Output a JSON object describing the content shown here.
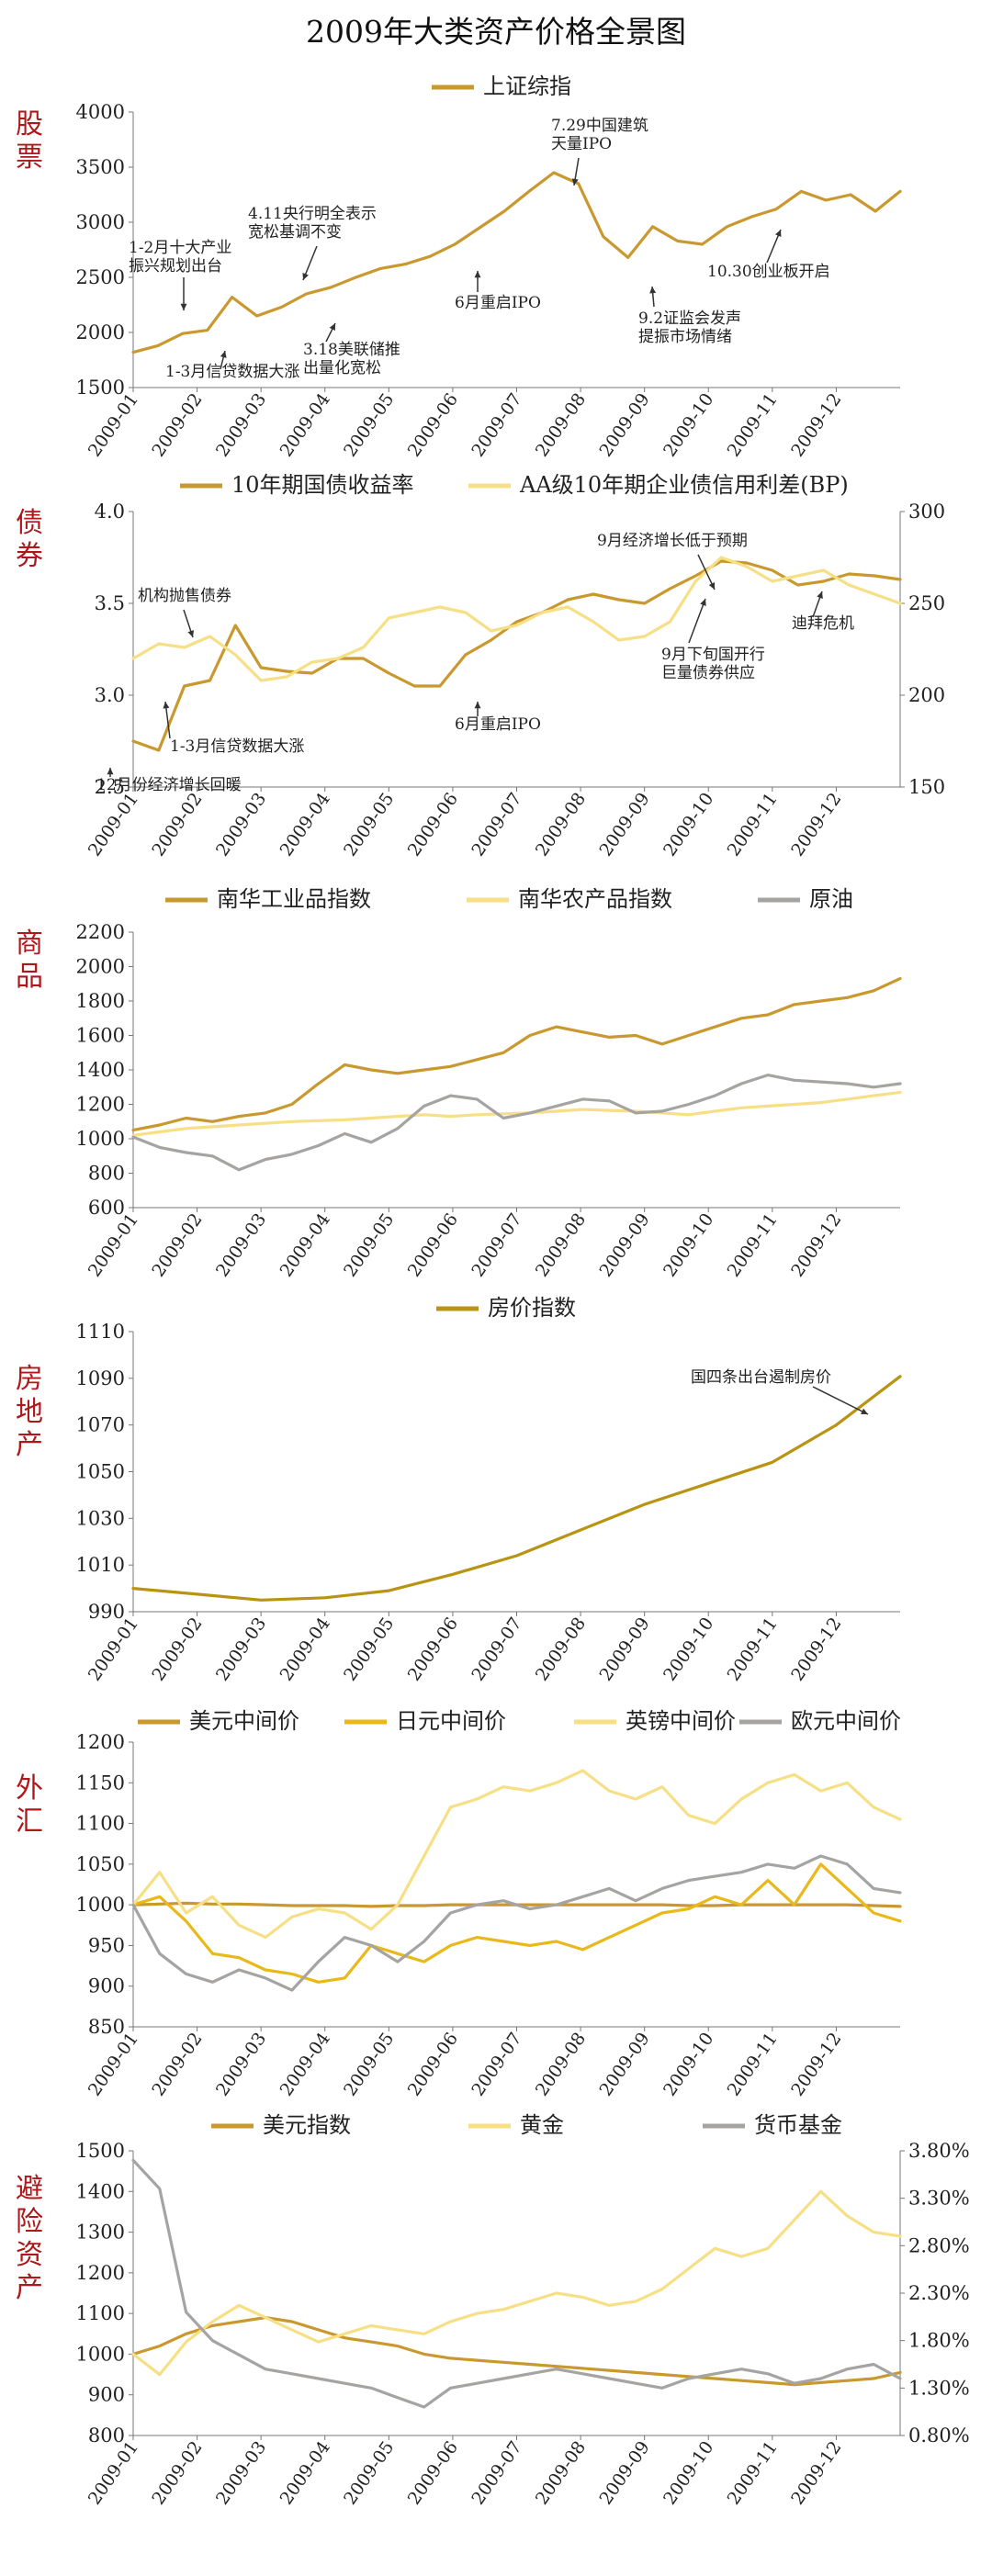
{
  "title": "2009年大类资产价格全景图",
  "colors": {
    "gold_dark": "#c9982e",
    "gold": "#e9b91c",
    "yellow_light": "#f7df86",
    "gray": "#a6a4a2",
    "olive": "#b99312",
    "label_red": "#b0171b"
  },
  "chart_data": [
    {
      "id": "stocks",
      "section": "股票",
      "type": "line",
      "title": "",
      "x_ticks": [
        "2009-01",
        "2009-02",
        "2009-03",
        "2009-04",
        "2009-05",
        "2009-06",
        "2009-07",
        "2009-08",
        "2009-09",
        "2009-10",
        "2009-11",
        "2009-12"
      ],
      "y_left": {
        "min": 1500,
        "max": 4000,
        "ticks": [
          "1500",
          "2000",
          "2500",
          "3000",
          "3500",
          "4000"
        ]
      },
      "series": [
        {
          "name": "上证综指",
          "axis": "left",
          "color": "#c9982e",
          "values": [
            1820,
            1880,
            1990,
            2020,
            2320,
            2150,
            2230,
            2350,
            2410,
            2500,
            2580,
            2620,
            2690,
            2800,
            2950,
            3100,
            3280,
            3450,
            3350,
            2870,
            2680,
            2960,
            2830,
            2800,
            2960,
            3050,
            3120,
            3280,
            3200,
            3250,
            3100,
            3280
          ]
        }
      ],
      "annotations": [
        {
          "text": [
            "1-2月十大产业",
            "振兴规划出台"
          ],
          "anchor": "left"
        },
        {
          "text": [
            "1-3月信贷数据大涨"
          ],
          "anchor": "left"
        },
        {
          "text": [
            "4.11央行明全表示",
            "宽松基调不变"
          ],
          "anchor": "left"
        },
        {
          "text": [
            "3.18美联储推",
            "出量化宽松"
          ],
          "anchor": "left"
        },
        {
          "text": [
            "6月重启IPO"
          ],
          "anchor": "left"
        },
        {
          "text": [
            "7.29中国建筑",
            "天量IPO"
          ],
          "anchor": "left"
        },
        {
          "text": [
            "9.2证监会发声",
            "提振市场情绪"
          ],
          "anchor": "left"
        },
        {
          "text": [
            "10.30创业板开启"
          ],
          "anchor": "left"
        }
      ]
    },
    {
      "id": "bonds",
      "section": "债券",
      "type": "line",
      "title": "",
      "x_ticks": [
        "2009-01",
        "2009-02",
        "2009-03",
        "2009-04",
        "2009-05",
        "2009-06",
        "2009-07",
        "2009-08",
        "2009-09",
        "2009-10",
        "2009-11",
        "2009-12"
      ],
      "y_left": {
        "min": 2.5,
        "max": 4.0,
        "ticks": [
          "2.5",
          "3.0",
          "3.5",
          "4.0"
        ]
      },
      "y_right": {
        "min": 150,
        "max": 300,
        "ticks": [
          "150",
          "200",
          "250",
          "300"
        ]
      },
      "series": [
        {
          "name": "10年期国债收益率",
          "axis": "left",
          "color": "#c9982e",
          "values": [
            2.75,
            2.7,
            3.05,
            3.08,
            3.38,
            3.15,
            3.13,
            3.12,
            3.2,
            3.2,
            3.12,
            3.05,
            3.05,
            3.22,
            3.3,
            3.4,
            3.45,
            3.52,
            3.55,
            3.52,
            3.5,
            3.58,
            3.65,
            3.73,
            3.72,
            3.68,
            3.6,
            3.62,
            3.66,
            3.65,
            3.63
          ]
        },
        {
          "name": "AA级10年期企业债信用利差(BP)",
          "axis": "right",
          "color": "#f7df86",
          "values": [
            220,
            228,
            226,
            232,
            222,
            208,
            210,
            218,
            220,
            226,
            242,
            245,
            248,
            245,
            235,
            238,
            245,
            248,
            240,
            230,
            232,
            240,
            262,
            275,
            270,
            262,
            265,
            268,
            260,
            255,
            250
          ]
        }
      ],
      "annotations": [
        {
          "text": [
            "机构抛售债券"
          ]
        },
        {
          "text": [
            "1-3月信贷数据大涨"
          ]
        },
        {
          "text": [
            "12月份经济增长回暖"
          ]
        },
        {
          "text": [
            "6月重启IPO"
          ]
        },
        {
          "text": [
            "9月经济增长低于预期"
          ]
        },
        {
          "text": [
            "9月下旬国开行",
            "巨量债券供应"
          ]
        },
        {
          "text": [
            "迪拜危机"
          ]
        }
      ]
    },
    {
      "id": "commodities",
      "section": "商品",
      "type": "line",
      "title": "",
      "x_ticks": [
        "2009-01",
        "2009-02",
        "2009-03",
        "2009-04",
        "2009-05",
        "2009-06",
        "2009-07",
        "2009-08",
        "2009-09",
        "2009-10",
        "2009-11",
        "2009-12"
      ],
      "y_left": {
        "min": 600,
        "max": 2200,
        "ticks": [
          "600",
          "800",
          "1000",
          "1200",
          "1400",
          "1600",
          "1800",
          "2000",
          "2200"
        ]
      },
      "series": [
        {
          "name": "南华工业品指数",
          "axis": "left",
          "color": "#c9982e",
          "values": [
            1050,
            1080,
            1120,
            1100,
            1130,
            1150,
            1200,
            1320,
            1430,
            1400,
            1380,
            1400,
            1420,
            1460,
            1500,
            1600,
            1650,
            1620,
            1590,
            1600,
            1550,
            1600,
            1650,
            1700,
            1720,
            1780,
            1800,
            1820,
            1860,
            1930
          ]
        },
        {
          "name": "南华农产品指数",
          "axis": "left",
          "color": "#f7df86",
          "values": [
            1020,
            1040,
            1060,
            1070,
            1080,
            1090,
            1100,
            1105,
            1110,
            1120,
            1130,
            1140,
            1130,
            1140,
            1145,
            1150,
            1160,
            1170,
            1165,
            1160,
            1150,
            1140,
            1160,
            1180,
            1190,
            1200,
            1210,
            1230,
            1250,
            1270
          ]
        },
        {
          "name": "原油",
          "axis": "left",
          "color": "#a6a4a2",
          "values": [
            1010,
            950,
            920,
            900,
            820,
            880,
            910,
            960,
            1030,
            980,
            1060,
            1190,
            1250,
            1230,
            1120,
            1150,
            1190,
            1230,
            1220,
            1150,
            1160,
            1200,
            1250,
            1320,
            1370,
            1340,
            1330,
            1320,
            1300,
            1320
          ]
        }
      ]
    },
    {
      "id": "realestate",
      "section": "房地产",
      "type": "line",
      "title": "",
      "x_ticks": [
        "2009-01",
        "2009-02",
        "2009-03",
        "2009-04",
        "2009-05",
        "2009-06",
        "2009-07",
        "2009-08",
        "2009-09",
        "2009-10",
        "2009-11",
        "2009-12"
      ],
      "y_left": {
        "min": 990,
        "max": 1110,
        "ticks": [
          "990",
          "1010",
          "1030",
          "1050",
          "1070",
          "1090",
          "1110"
        ]
      },
      "series": [
        {
          "name": "房价指数",
          "axis": "left",
          "color": "#b99312",
          "values": [
            1000,
            997.5,
            995,
            996,
            999,
            1006,
            1014,
            1025,
            1036,
            1045,
            1054,
            1070,
            1090.8
          ]
        }
      ],
      "annotations": [
        {
          "text": [
            "国四条出台遏制房价"
          ]
        }
      ]
    },
    {
      "id": "fx",
      "section": "外汇",
      "type": "line",
      "title": "",
      "x_ticks": [
        "2009-01",
        "2009-02",
        "2009-03",
        "2009-04",
        "2009-05",
        "2009-06",
        "2009-07",
        "2009-08",
        "2009-09",
        "2009-10",
        "2009-11",
        "2009-12"
      ],
      "y_left": {
        "min": 850,
        "max": 1200,
        "ticks": [
          "850",
          "900",
          "950",
          "1000",
          "1050",
          "1100",
          "1150",
          "1200"
        ]
      },
      "series": [
        {
          "name": "美元中间价",
          "axis": "left",
          "color": "#c9982e",
          "values": [
            1000,
            1001,
            1002,
            1001,
            1001,
            1000,
            999,
            999,
            999,
            998,
            999,
            999,
            1000,
            1000,
            1000,
            1000,
            1000,
            1000,
            1000,
            1000,
            1000,
            999,
            999,
            1000,
            1000,
            1000,
            1000,
            1000,
            999,
            998
          ]
        },
        {
          "name": "日元中间价",
          "axis": "left",
          "color": "#e9b91c",
          "values": [
            1000,
            1010,
            980,
            940,
            935,
            920,
            915,
            905,
            910,
            950,
            940,
            930,
            950,
            960,
            955,
            950,
            955,
            945,
            960,
            975,
            990,
            995,
            1010,
            1000,
            1030,
            1000,
            1050,
            1020,
            990,
            980
          ]
        },
        {
          "name": "英镑中间价",
          "axis": "left",
          "color": "#f7df86",
          "values": [
            1000,
            1040,
            990,
            1010,
            975,
            960,
            985,
            995,
            990,
            970,
            1000,
            1060,
            1120,
            1130,
            1145,
            1140,
            1150,
            1165,
            1140,
            1130,
            1145,
            1110,
            1100,
            1130,
            1150,
            1160,
            1140,
            1150,
            1120,
            1105
          ]
        },
        {
          "name": "欧元中间价",
          "axis": "left",
          "color": "#a6a4a2",
          "values": [
            1000,
            940,
            915,
            905,
            920,
            910,
            895,
            930,
            960,
            950,
            930,
            955,
            990,
            1000,
            1005,
            995,
            1000,
            1010,
            1020,
            1005,
            1020,
            1030,
            1035,
            1040,
            1050,
            1045,
            1060,
            1050,
            1020,
            1015
          ]
        }
      ]
    },
    {
      "id": "safehaven",
      "section": "避险资产",
      "type": "line",
      "title": "",
      "x_ticks": [
        "2009-01",
        "2009-02",
        "2009-03",
        "2009-04",
        "2009-05",
        "2009-06",
        "2009-07",
        "2009-08",
        "2009-09",
        "2009-10",
        "2009-11",
        "2009-12"
      ],
      "y_left": {
        "min": 800,
        "max": 1500,
        "ticks": [
          "800",
          "900",
          "1000",
          "1100",
          "1200",
          "1300",
          "1400",
          "1500"
        ]
      },
      "y_right": {
        "min": 0.8,
        "max": 3.8,
        "ticks": [
          "0.80%",
          "1.30%",
          "1.80%",
          "2.30%",
          "2.80%",
          "3.30%",
          "3.80%"
        ]
      },
      "series": [
        {
          "name": "美元指数",
          "axis": "left",
          "color": "#c9982e",
          "values": [
            1000,
            1020,
            1050,
            1070,
            1080,
            1090,
            1080,
            1060,
            1040,
            1030,
            1020,
            1000,
            990,
            985,
            980,
            975,
            970,
            965,
            960,
            955,
            950,
            945,
            940,
            935,
            930,
            925,
            930,
            935,
            940,
            955
          ]
        },
        {
          "name": "黄金",
          "axis": "left",
          "color": "#f7df86",
          "values": [
            1000,
            950,
            1030,
            1080,
            1120,
            1090,
            1060,
            1030,
            1050,
            1070,
            1060,
            1050,
            1080,
            1100,
            1110,
            1130,
            1150,
            1140,
            1120,
            1130,
            1160,
            1210,
            1260,
            1240,
            1260,
            1330,
            1400,
            1340,
            1300,
            1290
          ]
        },
        {
          "name": "货币基金",
          "axis": "right",
          "color": "#a6a4a2",
          "values": [
            3.7,
            3.4,
            2.1,
            1.8,
            1.65,
            1.5,
            1.45,
            1.4,
            1.35,
            1.3,
            1.2,
            1.1,
            1.3,
            1.35,
            1.4,
            1.45,
            1.5,
            1.45,
            1.4,
            1.35,
            1.3,
            1.4,
            1.45,
            1.5,
            1.45,
            1.35,
            1.4,
            1.5,
            1.55,
            1.4
          ]
        }
      ]
    }
  ]
}
